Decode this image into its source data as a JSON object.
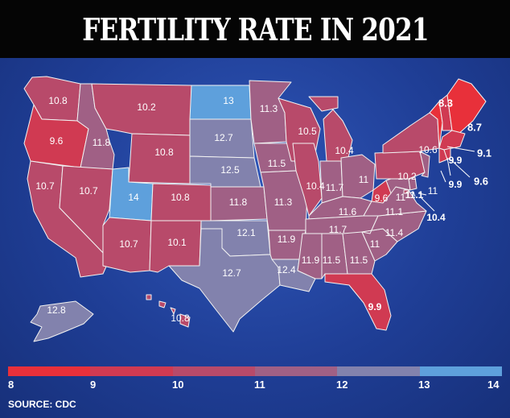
{
  "title": "FERTILITY RATE IN 2021",
  "source": "SOURCE: CDC",
  "colors": {
    "c8": "#e8303a",
    "c9": "#d03a52",
    "c10": "#b84a6a",
    "c11": "#a06085",
    "c12": "#8282ad",
    "c13": "#5ea0dc",
    "ocean": "#1f3e96",
    "border": "#f2f2f2"
  },
  "legend": {
    "ticks": [
      "8",
      "9",
      "10",
      "11",
      "12",
      "13",
      "14"
    ]
  },
  "states": [
    {
      "code": "WA",
      "value": "10.8"
    },
    {
      "code": "OR",
      "value": "9.6"
    },
    {
      "code": "CA",
      "value": "10.7"
    },
    {
      "code": "ID",
      "value": "11.8"
    },
    {
      "code": "NV",
      "value": "10.7"
    },
    {
      "code": "MT",
      "value": "10.2"
    },
    {
      "code": "WY",
      "value": "10.8"
    },
    {
      "code": "UT",
      "value": "14"
    },
    {
      "code": "AZ",
      "value": "10.7"
    },
    {
      "code": "CO",
      "value": "10.8"
    },
    {
      "code": "NM",
      "value": "10.1"
    },
    {
      "code": "ND",
      "value": "13"
    },
    {
      "code": "SD",
      "value": "12.7"
    },
    {
      "code": "NE",
      "value": "12.5"
    },
    {
      "code": "KS",
      "value": "11.8"
    },
    {
      "code": "OK",
      "value": "12.1"
    },
    {
      "code": "TX",
      "value": "12.7"
    },
    {
      "code": "MN",
      "value": "11.3"
    },
    {
      "code": "IA",
      "value": "11.5"
    },
    {
      "code": "MO",
      "value": "11.3"
    },
    {
      "code": "AR",
      "value": "11.9"
    },
    {
      "code": "LA",
      "value": "12.4"
    },
    {
      "code": "WI",
      "value": "10.5"
    },
    {
      "code": "IL",
      "value": "10.4"
    },
    {
      "code": "MI",
      "value": "10.4"
    },
    {
      "code": "IN",
      "value": "11.7"
    },
    {
      "code": "OH",
      "value": "11"
    },
    {
      "code": "KY",
      "value": "11.6"
    },
    {
      "code": "TN",
      "value": "11.7"
    },
    {
      "code": "MS",
      "value": "11.9"
    },
    {
      "code": "AL",
      "value": "11.5"
    },
    {
      "code": "GA",
      "value": "11.5"
    },
    {
      "code": "FL",
      "value": "9.9"
    },
    {
      "code": "SC",
      "value": "11"
    },
    {
      "code": "NC",
      "value": "11.4"
    },
    {
      "code": "VA",
      "value": "11.1"
    },
    {
      "code": "WV",
      "value": "9.6"
    },
    {
      "code": "MD",
      "value": "11"
    },
    {
      "code": "PA",
      "value": "10.2"
    },
    {
      "code": "NY",
      "value": "10.6"
    },
    {
      "code": "VT",
      "value": "8.3"
    },
    {
      "code": "NH",
      "value": "9.1"
    },
    {
      "code": "ME",
      "value": "8.7"
    },
    {
      "code": "MA",
      "value": "9.9"
    },
    {
      "code": "CT",
      "value": "9.6"
    },
    {
      "code": "RI",
      "value": "9.9"
    },
    {
      "code": "NJ",
      "value": "11"
    },
    {
      "code": "DE",
      "value": "11.1"
    },
    {
      "code": "DC",
      "value": "10.4"
    },
    {
      "code": "AK",
      "value": "12.8"
    },
    {
      "code": "HI",
      "value": "10.8"
    }
  ]
}
